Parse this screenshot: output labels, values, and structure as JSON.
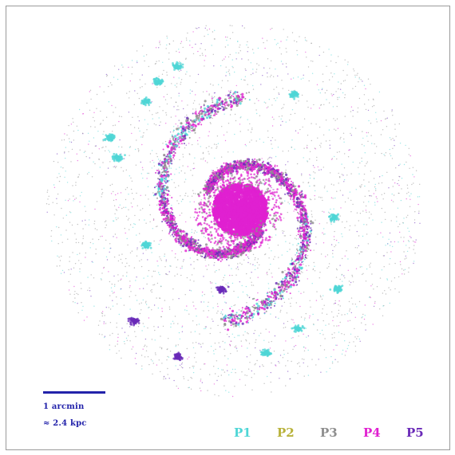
{
  "scale_bar": {
    "color": "#2222aa",
    "line1": "1 arcmin",
    "line2": "≈ 2.4 kpc"
  },
  "legend": [
    {
      "label": "P1",
      "color": "#4fd6d6"
    },
    {
      "label": "P2",
      "color": "#b8b23a"
    },
    {
      "label": "P3",
      "color": "#8e8e8e"
    },
    {
      "label": "P4",
      "color": "#e020d0"
    },
    {
      "label": "P5",
      "color": "#6a2ab8"
    }
  ]
}
